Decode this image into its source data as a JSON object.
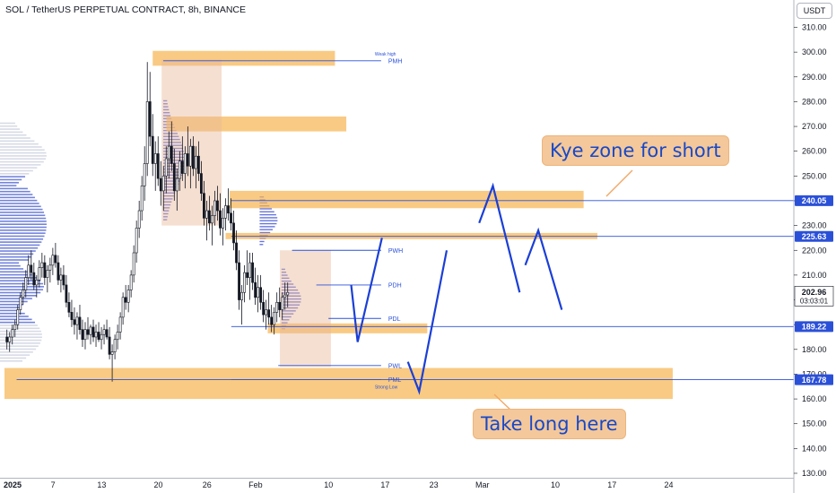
{
  "header": {
    "title": "SOL / TetherUS PERPETUAL CONTRACT, 8h, BINANCE",
    "currency": "USDT"
  },
  "annotations": {
    "short_zone": "Kye zone for short",
    "long_zone": "Take long here"
  },
  "chart_data": {
    "type": "candlestick",
    "ylim": [
      127,
      318
    ],
    "y_ticks": [
      130,
      140,
      150,
      160,
      170,
      180,
      190,
      200,
      210,
      220,
      230,
      240,
      250,
      260,
      270,
      280,
      290,
      300,
      310
    ],
    "x_ticks": [
      {
        "label": "2025",
        "day": 0
      },
      {
        "label": "7",
        "day": 6
      },
      {
        "label": "13",
        "day": 12
      },
      {
        "label": "20",
        "day": 19
      },
      {
        "label": "26",
        "day": 25
      },
      {
        "label": "Feb",
        "day": 31
      },
      {
        "label": "10",
        "day": 40
      },
      {
        "label": "17",
        "day": 47
      },
      {
        "label": "23",
        "day": 53
      },
      {
        "label": "Mar",
        "day": 59
      },
      {
        "label": "10",
        "day": 68
      },
      {
        "label": "17",
        "day": 75
      },
      {
        "label": "24",
        "day": 82
      }
    ],
    "price_labels": [
      {
        "value": 240.05,
        "text": "240.05"
      },
      {
        "value": 225.63,
        "text": "225.63"
      },
      {
        "value": 189.22,
        "text": "189.22"
      },
      {
        "value": 167.78,
        "text": "167.78"
      }
    ],
    "current_price": {
      "value": 202.96,
      "text": "202.96",
      "countdown": "03:03:01"
    },
    "levels": [
      {
        "name": "PMH",
        "value": 296.5,
        "day_start": 19.6,
        "day_end": 46.5,
        "note": "Weak high"
      },
      {
        "name": "PWH",
        "value": 220,
        "day_start": 35.5,
        "day_end": 46.5,
        "note": ""
      },
      {
        "name": "PDH",
        "value": 206,
        "day_start": 38.5,
        "day_end": 46.5,
        "note": ""
      },
      {
        "name": "PDL",
        "value": 192.5,
        "day_start": 40,
        "day_end": 46.5,
        "note": ""
      },
      {
        "name": "PWL",
        "value": 173.5,
        "day_start": 33.8,
        "day_end": 46.5,
        "note": ""
      },
      {
        "name": "PML",
        "value": 167.78,
        "day_start": 1.5,
        "day_end": 46.5,
        "note": "Strong Low"
      }
    ],
    "zones": [
      {
        "low": 294.5,
        "high": 300.5,
        "day_start": 18.3,
        "day_end": 40.8
      },
      {
        "low": 268.0,
        "high": 274.0,
        "day_start": 20.0,
        "day_end": 42.2
      },
      {
        "low": 237.0,
        "high": 244.0,
        "day_start": 27.8,
        "day_end": 71.5
      },
      {
        "low": 224.5,
        "high": 227.0,
        "day_start": 27.3,
        "day_end": 73.2
      },
      {
        "low": 186.5,
        "high": 190.5,
        "day_start": 32.5,
        "day_end": 52.2
      },
      {
        "low": 160.0,
        "high": 172.5,
        "day_start": 0,
        "day_end": 82.5
      }
    ],
    "rects": [
      {
        "low": 230,
        "high": 297,
        "day_start": 19.4,
        "day_end": 26.8
      },
      {
        "low": 173,
        "high": 220,
        "day_start": 34.0,
        "day_end": 40.3
      }
    ],
    "projection_paths": [
      [
        [
          42.8,
          206
        ],
        [
          43.6,
          183
        ],
        [
          46.6,
          225
        ]
      ],
      [
        [
          49.8,
          175
        ],
        [
          51.2,
          163
        ],
        [
          54.6,
          220
        ]
      ],
      [
        [
          58.6,
          231
        ],
        [
          60.3,
          246
        ],
        [
          63.6,
          203
        ]
      ],
      [
        [
          64.3,
          214
        ],
        [
          65.9,
          228
        ],
        [
          68.8,
          196
        ]
      ]
    ],
    "candles": [
      [
        185,
        188,
        180,
        183
      ],
      [
        183,
        187,
        179,
        185
      ],
      [
        185,
        190,
        182,
        188
      ],
      [
        188,
        192,
        185,
        190
      ],
      [
        190,
        198,
        188,
        196
      ],
      [
        196,
        203,
        194,
        201
      ],
      [
        201,
        207,
        198,
        204
      ],
      [
        204,
        212,
        201,
        209
      ],
      [
        209,
        218,
        206,
        214
      ],
      [
        214,
        220,
        208,
        211
      ],
      [
        211,
        215,
        204,
        206
      ],
      [
        206,
        210,
        201,
        208
      ],
      [
        208,
        216,
        205,
        213
      ],
      [
        213,
        219,
        209,
        215
      ],
      [
        215,
        218,
        206,
        209
      ],
      [
        209,
        214,
        203,
        212
      ],
      [
        212,
        217,
        207,
        214
      ],
      [
        214,
        221,
        210,
        218
      ],
      [
        218,
        223,
        213,
        215
      ],
      [
        215,
        218,
        206,
        208
      ],
      [
        208,
        213,
        203,
        210
      ],
      [
        210,
        214,
        204,
        206
      ],
      [
        206,
        210,
        197,
        199
      ],
      [
        199,
        203,
        193,
        195
      ],
      [
        195,
        200,
        189,
        192
      ],
      [
        192,
        197,
        186,
        190
      ],
      [
        190,
        195,
        184,
        193
      ],
      [
        193,
        198,
        186,
        188
      ],
      [
        188,
        192,
        181,
        184
      ],
      [
        184,
        191,
        180,
        188
      ],
      [
        188,
        193,
        184,
        186
      ],
      [
        186,
        190,
        182,
        189
      ],
      [
        189,
        192,
        183,
        185
      ],
      [
        185,
        190,
        181,
        187
      ],
      [
        187,
        191,
        183,
        184
      ],
      [
        184,
        189,
        180,
        186
      ],
      [
        186,
        190,
        182,
        188
      ],
      [
        188,
        192,
        184,
        185
      ],
      [
        185,
        189,
        176,
        178
      ],
      [
        178,
        182,
        167,
        179
      ],
      [
        179,
        186,
        176,
        184
      ],
      [
        184,
        190,
        180,
        187
      ],
      [
        187,
        195,
        184,
        193
      ],
      [
        193,
        203,
        190,
        201
      ],
      [
        201,
        206,
        196,
        199
      ],
      [
        199,
        206,
        195,
        204
      ],
      [
        204,
        212,
        201,
        210
      ],
      [
        210,
        222,
        207,
        219
      ],
      [
        219,
        232,
        215,
        229
      ],
      [
        229,
        240,
        225,
        236
      ],
      [
        236,
        250,
        232,
        246
      ],
      [
        246,
        262,
        240,
        255
      ],
      [
        255,
        296,
        250,
        280
      ],
      [
        280,
        292,
        262,
        266
      ],
      [
        266,
        275,
        250,
        255
      ],
      [
        255,
        264,
        244,
        259
      ],
      [
        259,
        266,
        246,
        249
      ],
      [
        249,
        256,
        238,
        244
      ],
      [
        244,
        254,
        236,
        250
      ],
      [
        250,
        262,
        243,
        257
      ],
      [
        257,
        268,
        249,
        262
      ],
      [
        262,
        272,
        252,
        255
      ],
      [
        255,
        261,
        240,
        244
      ],
      [
        244,
        253,
        236,
        249
      ],
      [
        249,
        260,
        244,
        256
      ],
      [
        256,
        266,
        248,
        251
      ],
      [
        251,
        262,
        245,
        259
      ],
      [
        259,
        270,
        250,
        254
      ],
      [
        254,
        265,
        245,
        262
      ],
      [
        262,
        266,
        250,
        253
      ],
      [
        253,
        262,
        245,
        258
      ],
      [
        258,
        264,
        248,
        251
      ],
      [
        251,
        256,
        240,
        243
      ],
      [
        243,
        248,
        230,
        233
      ],
      [
        233,
        240,
        224,
        236
      ],
      [
        236,
        242,
        228,
        231
      ],
      [
        231,
        238,
        222,
        234
      ],
      [
        234,
        244,
        230,
        240
      ],
      [
        240,
        246,
        232,
        236
      ],
      [
        236,
        243,
        226,
        229
      ],
      [
        229,
        237,
        222,
        233
      ],
      [
        233,
        241,
        228,
        238
      ],
      [
        238,
        245,
        232,
        235
      ],
      [
        235,
        241,
        228,
        231
      ],
      [
        231,
        236,
        220,
        223
      ],
      [
        223,
        228,
        212,
        215
      ],
      [
        215,
        220,
        196,
        200
      ],
      [
        200,
        206,
        190,
        203
      ],
      [
        203,
        214,
        199,
        211
      ],
      [
        211,
        220,
        206,
        209
      ],
      [
        209,
        219,
        200,
        215
      ],
      [
        215,
        219,
        204,
        207
      ],
      [
        207,
        213,
        198,
        201
      ],
      [
        201,
        210,
        195,
        205
      ],
      [
        205,
        210,
        196,
        199
      ],
      [
        199,
        204,
        191,
        194
      ],
      [
        194,
        200,
        188,
        196
      ],
      [
        196,
        203,
        190,
        193
      ],
      [
        193,
        198,
        187,
        190
      ],
      [
        190,
        197,
        186,
        195
      ],
      [
        195,
        203,
        191,
        199
      ],
      [
        199,
        205,
        193,
        196
      ],
      [
        196,
        203,
        192,
        201
      ],
      [
        201,
        207,
        196,
        202
      ],
      [
        202,
        207,
        197,
        203
      ]
    ],
    "candles_day_start": 0.3,
    "candles_day_step": 0.3333
  }
}
